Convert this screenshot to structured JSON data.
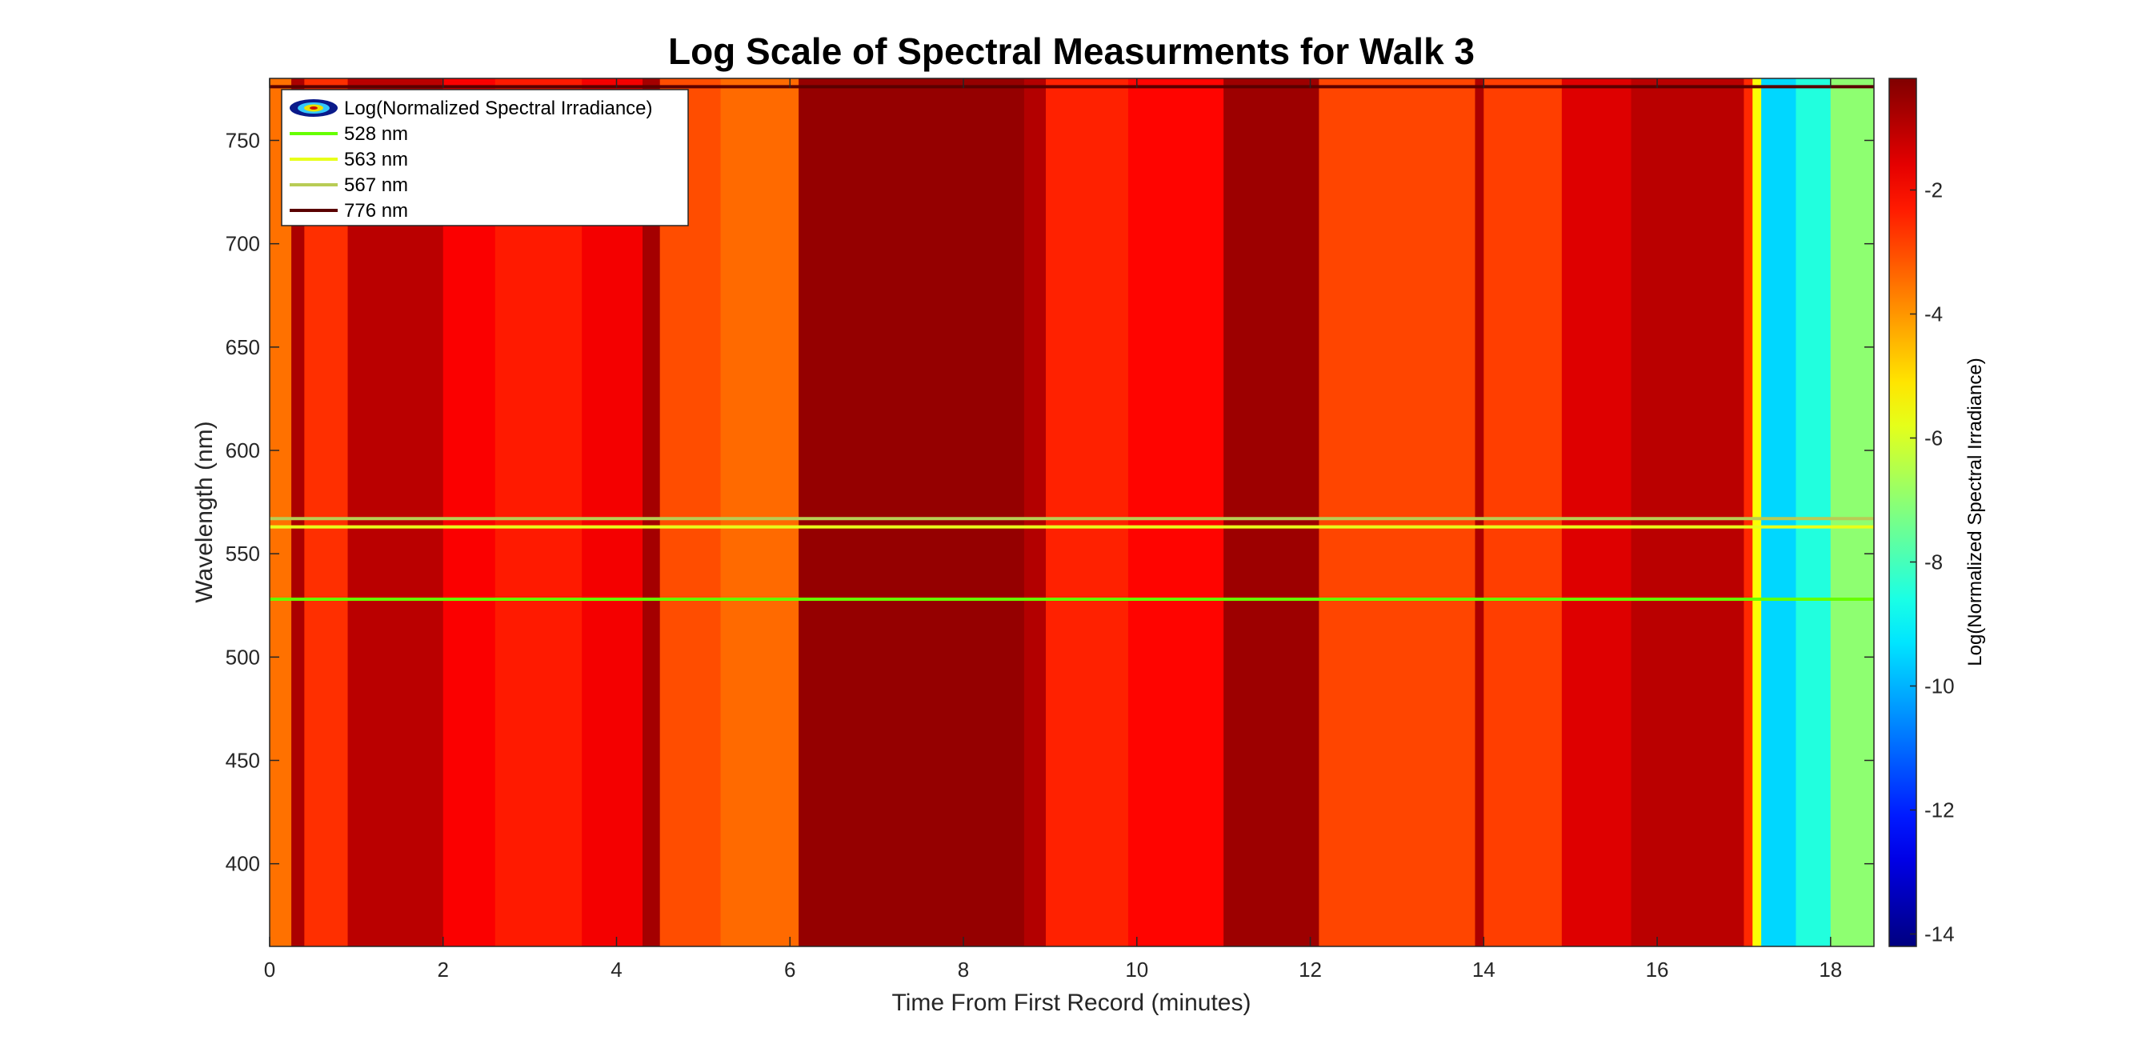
{
  "chart_data": {
    "type": "heatmap",
    "title": "Log Scale of Spectral Measurments for Walk 3",
    "xlabel": "Time From First Record (minutes)",
    "ylabel": "Wavelength (nm)",
    "colorbar_label": "Log(Normalized Spectral Irradiance)",
    "xlim": [
      0,
      18.5
    ],
    "ylim": [
      360,
      780
    ],
    "clim": [
      -14.2,
      -0.2
    ],
    "x_ticks": [
      0,
      2,
      4,
      6,
      8,
      10,
      12,
      14,
      16,
      18
    ],
    "y_ticks": [
      400,
      450,
      500,
      550,
      600,
      650,
      700,
      750
    ],
    "colorbar_ticks": [
      -2,
      -4,
      -6,
      -8,
      -10,
      -12,
      -14
    ],
    "colormap": "jet",
    "time_bands": [
      {
        "t0": 0.0,
        "t1": 0.25,
        "level": -3.5
      },
      {
        "t0": 0.25,
        "t1": 0.4,
        "level": -0.8
      },
      {
        "t0": 0.4,
        "t1": 0.9,
        "level": -2.6
      },
      {
        "t0": 0.9,
        "t1": 2.0,
        "level": -1.0
      },
      {
        "t0": 2.0,
        "t1": 2.6,
        "level": -1.9
      },
      {
        "t0": 2.6,
        "t1": 3.6,
        "level": -2.3
      },
      {
        "t0": 3.6,
        "t1": 4.3,
        "level": -1.8
      },
      {
        "t0": 4.3,
        "t1": 4.5,
        "level": -0.7
      },
      {
        "t0": 4.5,
        "t1": 5.2,
        "level": -3.0
      },
      {
        "t0": 5.2,
        "t1": 6.1,
        "level": -3.4
      },
      {
        "t0": 6.1,
        "t1": 8.7,
        "level": -0.5
      },
      {
        "t0": 8.7,
        "t1": 8.95,
        "level": -0.9
      },
      {
        "t0": 8.95,
        "t1": 9.9,
        "level": -2.4
      },
      {
        "t0": 9.9,
        "t1": 11.0,
        "level": -2.0
      },
      {
        "t0": 11.0,
        "t1": 12.1,
        "level": -0.6
      },
      {
        "t0": 12.1,
        "t1": 13.9,
        "level": -2.9
      },
      {
        "t0": 13.9,
        "t1": 14.0,
        "level": -0.8
      },
      {
        "t0": 14.0,
        "t1": 14.9,
        "level": -2.8
      },
      {
        "t0": 14.9,
        "t1": 15.7,
        "level": -1.5
      },
      {
        "t0": 15.7,
        "t1": 17.0,
        "level": -1.0
      },
      {
        "t0": 17.0,
        "t1": 17.1,
        "level": -2.5
      },
      {
        "t0": 17.1,
        "t1": 17.2,
        "level": -5.5
      },
      {
        "t0": 17.2,
        "t1": 17.6,
        "level": -9.5
      },
      {
        "t0": 17.6,
        "t1": 18.0,
        "level": -8.5
      },
      {
        "t0": 18.0,
        "t1": 18.5,
        "level": -7.0
      }
    ],
    "series": [
      {
        "name": "528 nm",
        "y": 528,
        "color": "#66ff00"
      },
      {
        "name": "563 nm",
        "y": 563,
        "color": "#e8ff1a"
      },
      {
        "name": "567 nm",
        "y": 567,
        "color": "#b8cc55"
      },
      {
        "name": "776 nm",
        "y": 776,
        "color": "#5a0000"
      }
    ],
    "legend": {
      "placement": "top-left",
      "entries": [
        "Log(Normalized Spectral Irradiance)",
        "528 nm",
        "563 nm",
        "567 nm",
        "776 nm"
      ]
    }
  }
}
